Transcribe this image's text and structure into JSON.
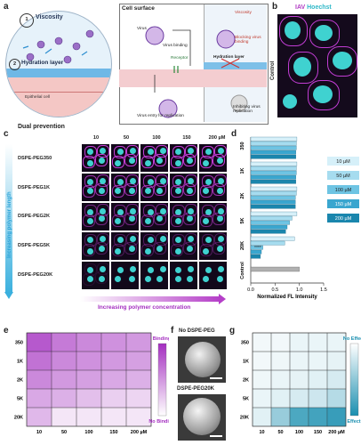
{
  "panels": {
    "a": "a",
    "b": "b",
    "c": "c",
    "d": "d",
    "e": "e",
    "f": "f",
    "g": "g"
  },
  "panel_a": {
    "viscosity": "Viscosity",
    "hydration": "Hydration layer",
    "epithelial": "Epithelial cell",
    "dual": "Dual prevention",
    "cell_surface": "Cell surface",
    "virus": "Virus",
    "virus_binding": "Virus binding",
    "receptor": "Receptor",
    "virus_entry": "Virus entry for replication",
    "viscosity2": "Viscosity",
    "blocking": "Blocking virus binding",
    "hydration2": "Hydration layer",
    "inhibiting": "Inhibiting virus replication",
    "n1": "1",
    "n2": "2"
  },
  "panel_b": {
    "iav": "IAV",
    "hoechst": "Hoechst",
    "control": "Control"
  },
  "panel_c": {
    "columns": [
      "10",
      "50",
      "100",
      "150",
      "200 µM"
    ],
    "rows": [
      "DSPE-PEG350",
      "DSPE-PEG1K",
      "DSPE-PEG2K",
      "DSPE-PEG5K",
      "DSPE-PEG20K"
    ],
    "y_arrow": "Increasing polymer length",
    "x_arrow": "Increasing polymer concentration"
  },
  "panel_d": {
    "legend": [
      "10 µM",
      "50 µM",
      "100 µM",
      "150 µM",
      "200 µM"
    ],
    "xlabel": "Normalized FL Intensity",
    "control": "Control",
    "sig": "****"
  },
  "panel_e": {
    "rows": [
      "350",
      "1K",
      "2K",
      "5K",
      "20K"
    ],
    "cols": [
      "10",
      "50",
      "100",
      "150",
      "200 µM"
    ],
    "binding": "Binding",
    "no_binding": "No Binding"
  },
  "panel_f": {
    "top": "No DSPE-PEG",
    "bottom": "DSPE-PEG20K"
  },
  "panel_g": {
    "rows": [
      "350",
      "1K",
      "2K",
      "5K",
      "20K"
    ],
    "cols": [
      "10",
      "50",
      "100",
      "150",
      "200 µM"
    ],
    "no_effect": "No Effect",
    "effect": "Effect"
  },
  "colors": {
    "magenta": "#a42fc0",
    "cyan": "#35c9d6",
    "bar_dark": "#1a8fb0",
    "bar_light": "#cfeef7",
    "control_bar": "#b0b0b0"
  },
  "chart_data": [
    {
      "type": "bar",
      "orientation": "horizontal",
      "groups": [
        "350",
        "1K",
        "2K",
        "5K",
        "20K",
        "Control"
      ],
      "series": [
        {
          "name": "10 µM",
          "values": [
            0.95,
            0.95,
            0.95,
            0.95,
            0.9
          ]
        },
        {
          "name": "50 µM",
          "values": [
            0.94,
            0.94,
            0.94,
            0.85,
            0.7
          ]
        },
        {
          "name": "100 µM",
          "values": [
            0.94,
            0.94,
            0.92,
            0.8,
            0.25
          ]
        },
        {
          "name": "150 µM",
          "values": [
            0.93,
            0.93,
            0.92,
            0.75,
            0.22
          ]
        },
        {
          "name": "200 µM",
          "values": [
            0.93,
            0.93,
            0.92,
            0.72,
            0.2
          ]
        }
      ],
      "control_value": 1.0,
      "xlabel": "Normalized FL Intensity",
      "xlim": [
        0,
        1.5
      ],
      "xticks": [
        "0.0",
        "0.5",
        "1.0",
        "1.5"
      ]
    },
    {
      "type": "heatmap",
      "rows": [
        "350",
        "1K",
        "2K",
        "5K",
        "20K"
      ],
      "cols": [
        "10",
        "50",
        "100",
        "150",
        "200 µM"
      ],
      "values": [
        [
          0.9,
          0.7,
          0.6,
          0.55,
          0.5
        ],
        [
          0.75,
          0.6,
          0.55,
          0.5,
          0.45
        ],
        [
          0.6,
          0.5,
          0.45,
          0.4,
          0.35
        ],
        [
          0.4,
          0.35,
          0.25,
          0.15,
          0.1
        ],
        [
          0.3,
          0,
          0,
          0,
          0
        ]
      ],
      "legend": [
        "Binding",
        "No Binding"
      ]
    },
    {
      "type": "heatmap",
      "rows": [
        "350",
        "1K",
        "2K",
        "5K",
        "20K"
      ],
      "cols": [
        "10",
        "50",
        "100",
        "150",
        "200 µM"
      ],
      "values": [
        [
          0.02,
          0.02,
          0.05,
          0.05,
          0.05
        ],
        [
          0.02,
          0.03,
          0.05,
          0.05,
          0.08
        ],
        [
          0.03,
          0.05,
          0.08,
          0.1,
          0.15
        ],
        [
          0.05,
          0.1,
          0.15,
          0.2,
          0.3
        ],
        [
          0.1,
          0.45,
          0.8,
          0.85,
          0.9
        ]
      ],
      "legend": [
        "No Effect",
        "Effect"
      ]
    }
  ]
}
